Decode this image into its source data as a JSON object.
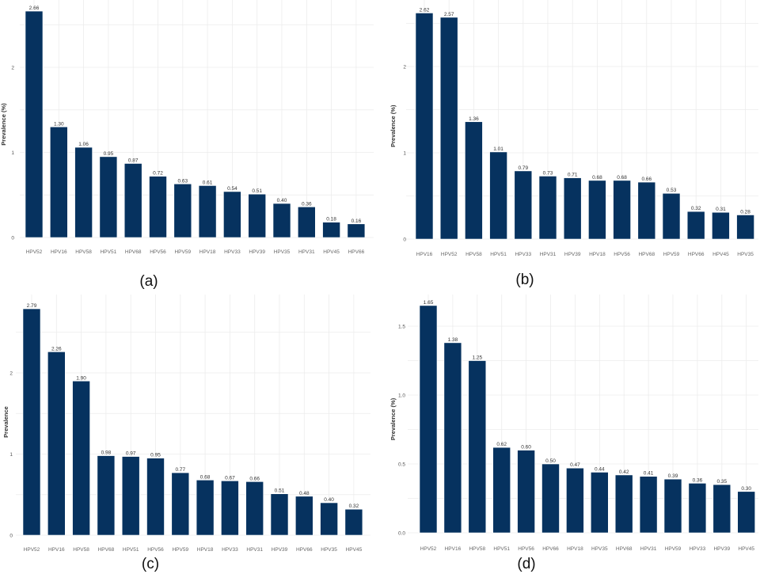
{
  "bar_color": "#06325f",
  "chart_data": [
    {
      "type": "bar",
      "caption": "(a)",
      "ylabel": "Prevalence (%)",
      "yticks": [
        "0",
        "1",
        "2"
      ],
      "ytick_values": [
        0,
        1,
        2
      ],
      "ylim": [
        0,
        2.66
      ],
      "categories": [
        "HPV52",
        "HPV16",
        "HPV58",
        "HPV51",
        "HPV68",
        "HPV56",
        "HPV59",
        "HPV18",
        "HPV33",
        "HPV39",
        "HPV35",
        "HPV31",
        "HPV45",
        "HPV66"
      ],
      "values": [
        2.66,
        1.3,
        1.06,
        0.95,
        0.87,
        0.72,
        0.63,
        0.61,
        0.54,
        0.51,
        0.4,
        0.36,
        0.18,
        0.16
      ],
      "labels": [
        "2.66",
        "1.30",
        "1.06",
        "0.95",
        "0.87",
        "0.72",
        "0.63",
        "0.61",
        "0.54",
        "0.51",
        "0.40",
        "0.36",
        "0.18",
        "0.16"
      ]
    },
    {
      "type": "bar",
      "caption": "(b)",
      "ylabel": "Prevalence (%)",
      "yticks": [
        "0",
        "1",
        "2"
      ],
      "ytick_values": [
        0,
        1,
        2
      ],
      "ylim": [
        0,
        2.62
      ],
      "categories": [
        "HPV16",
        "HPV52",
        "HPV58",
        "HPV51",
        "HPV33",
        "HPV31",
        "HPV39",
        "HPV18",
        "HPV56",
        "HPV68",
        "HPV59",
        "HPV66",
        "HPV45",
        "HPV35"
      ],
      "values": [
        2.62,
        2.57,
        1.36,
        1.01,
        0.79,
        0.73,
        0.71,
        0.68,
        0.68,
        0.66,
        0.53,
        0.32,
        0.31,
        0.28
      ],
      "labels": [
        "2.62",
        "2.57",
        "1.36",
        "1.01",
        "0.79",
        "0.73",
        "0.71",
        "0.68",
        "0.68",
        "0.66",
        "0.53",
        "0.32",
        "0.31",
        "0.28"
      ]
    },
    {
      "type": "bar",
      "caption": "(c)",
      "ylabel": "Prevalence",
      "yticks": [
        "0",
        "1",
        "2"
      ],
      "ytick_values": [
        0,
        1,
        2
      ],
      "ylim": [
        0,
        2.79
      ],
      "categories": [
        "HPV52",
        "HPV16",
        "HPV58",
        "HPV68",
        "HPV51",
        "HPV56",
        "HPV59",
        "HPV18",
        "HPV33",
        "HPV31",
        "HPV39",
        "HPV66",
        "HPV35",
        "HPV45"
      ],
      "values": [
        2.79,
        2.26,
        1.9,
        0.98,
        0.97,
        0.95,
        0.77,
        0.68,
        0.67,
        0.66,
        0.51,
        0.48,
        0.4,
        0.32
      ],
      "labels": [
        "2.79",
        "2.26",
        "1.90",
        "0.98",
        "0.97",
        "0.95",
        "0.77",
        "0.68",
        "0.67",
        "0.66",
        "0.51",
        "0.48",
        "0.40",
        "0.32"
      ]
    },
    {
      "type": "bar",
      "caption": "(d)",
      "ylabel": "Prevalence (%)",
      "yticks": [
        "0.0",
        "0.5",
        "1.0",
        "1.5"
      ],
      "ytick_values": [
        0,
        0.5,
        1.0,
        1.5
      ],
      "ylim": [
        0,
        1.65
      ],
      "categories": [
        "HPV52",
        "HPV16",
        "HPV58",
        "HPV51",
        "HPV56",
        "HPV66",
        "HPV18",
        "HPV35",
        "HPV68",
        "HPV31",
        "HPV59",
        "HPV33",
        "HPV39",
        "HPV45"
      ],
      "values": [
        1.65,
        1.38,
        1.25,
        0.62,
        0.6,
        0.5,
        0.47,
        0.44,
        0.42,
        0.41,
        0.39,
        0.36,
        0.35,
        0.3
      ],
      "labels": [
        "1.65",
        "1.38",
        "1.25",
        "0.62",
        "0.60",
        "0.50",
        "0.47",
        "0.44",
        "0.42",
        "0.41",
        "0.39",
        "0.36",
        "0.35",
        "0.30"
      ]
    }
  ]
}
